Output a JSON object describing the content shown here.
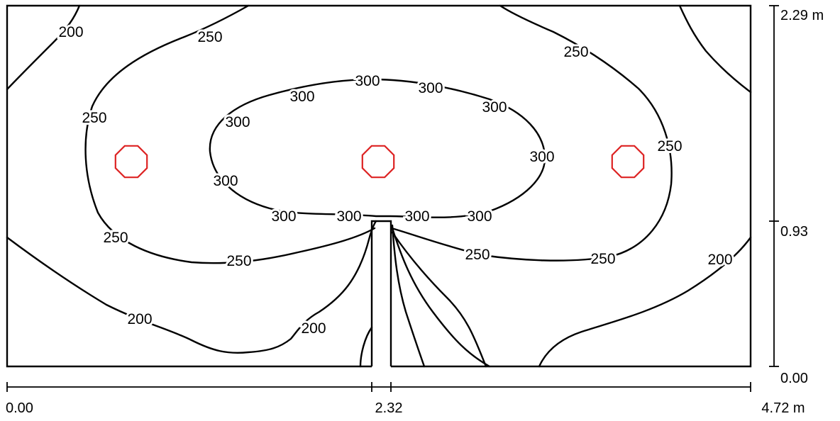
{
  "colors": {
    "background": "#ffffff",
    "contour": "#000000",
    "luminaire": "#dd2222"
  },
  "contour_labels": {
    "c200_a": "200",
    "c200_b": "200",
    "c200_c": "200",
    "c200_d": "200",
    "c250_a": "250",
    "c250_b": "250",
    "c250_c": "250",
    "c250_d": "250",
    "c250_e": "250",
    "c250_f": "250",
    "c250_g": "250",
    "c250_h": "250",
    "c300_a": "300",
    "c300_b": "300",
    "c300_c": "300",
    "c300_d": "300",
    "c300_e": "300",
    "c300_f": "300",
    "c300_g": "300",
    "c300_h": "300",
    "c300_i": "300",
    "c300_j": "300"
  },
  "x_axis": {
    "tick_start": "0.00",
    "tick_mid": "2.32",
    "tick_end": "4.72 m"
  },
  "y_axis": {
    "tick_bottom": "0.00",
    "tick_mid": "0.93",
    "tick_top": "2.29 m"
  },
  "luminaires": [
    {
      "icon": "luminaire-octagon-icon"
    },
    {
      "icon": "luminaire-octagon-icon"
    },
    {
      "icon": "luminaire-octagon-icon"
    }
  ]
}
